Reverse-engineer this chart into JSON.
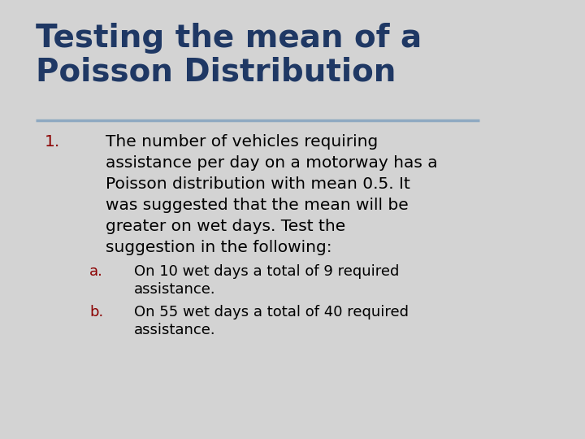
{
  "title_line1": "Testing the mean of a",
  "title_line2": "Poisson Distribution",
  "title_color": "#1F3864",
  "title_fontsize": 28,
  "background_color": "#D3D3D3",
  "divider_color": "#8EA9C1",
  "body_fontsize": 14.5,
  "sub_fontsize": 13,
  "number_color": "#8B0000",
  "letter_color": "#8B0000",
  "text_color": "#000000",
  "font_family": "DejaVu Sans",
  "item1_lines": [
    "The number of vehicles requiring",
    "assistance per day on a motorway has a",
    "Poisson distribution with mean 0.5. It",
    "was suggested that the mean will be",
    "greater on wet days. Test the",
    "suggestion in the following:"
  ],
  "item_a_lines": [
    "On 10 wet days a total of 9 required",
    "assistance."
  ],
  "item_b_lines": [
    "On 55 wet days a total of 40 required",
    "assistance."
  ]
}
